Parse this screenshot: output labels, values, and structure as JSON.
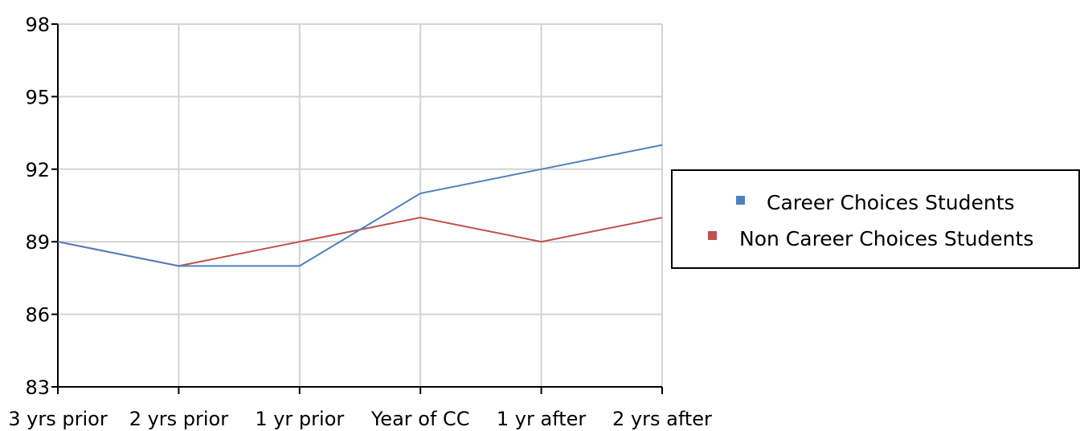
{
  "chart_data": {
    "type": "line",
    "categories": [
      "3 yrs prior",
      "2 yrs prior",
      "1 yr prior",
      "Year of CC",
      "1 yr after",
      "2 yrs after"
    ],
    "series": [
      {
        "name": "Career Choices Students",
        "color": "#4f81bd",
        "values": [
          89,
          88,
          88,
          91,
          92,
          93
        ]
      },
      {
        "name": "Non Career Choices Students",
        "color": "#c0504d",
        "values": [
          89,
          88,
          89,
          90,
          89,
          90
        ]
      }
    ],
    "yticks": [
      83,
      86,
      89,
      92,
      95,
      98
    ],
    "ylim": [
      83,
      98
    ],
    "grid": true,
    "legend_position": "right"
  }
}
